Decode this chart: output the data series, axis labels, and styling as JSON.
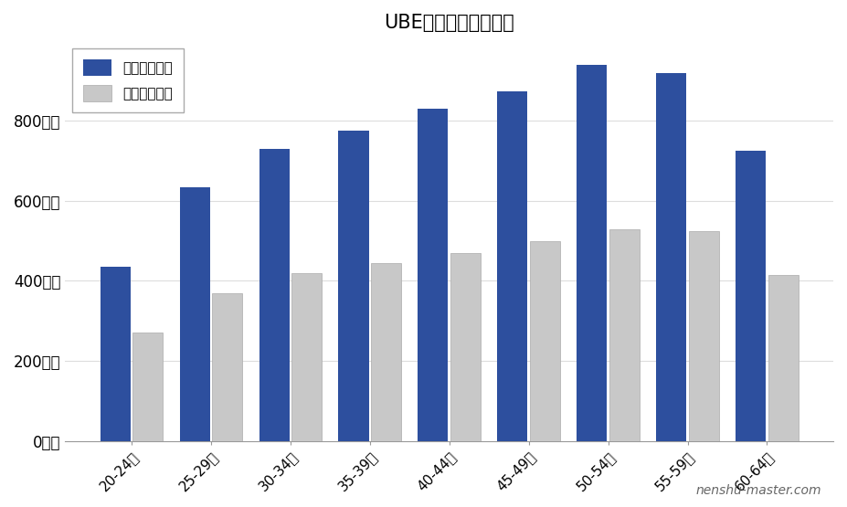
{
  "title": "UBEの年齢別平均年収",
  "categories": [
    "20-24歳",
    "25-29歳",
    "30-34歳",
    "35-39歳",
    "40-44歳",
    "45-49歳",
    "50-54歳",
    "55-59歳",
    "60-64歳"
  ],
  "ube_values": [
    435,
    635,
    730,
    775,
    830,
    875,
    940,
    920,
    725
  ],
  "national_values": [
    270,
    370,
    420,
    445,
    470,
    500,
    530,
    525,
    415
  ],
  "ube_color": "#2d4f9e",
  "national_color": "#c8c8c8",
  "ube_label": "想定平均年収",
  "national_label": "全国平均年収",
  "ylabel_ticks": [
    0,
    200,
    400,
    600,
    800
  ],
  "ylabel_tick_labels": [
    "0万円",
    "200万円",
    "400万円",
    "600万円",
    "800万円"
  ],
  "ylim": [
    0,
    1000
  ],
  "watermark": "nenshu-master.com",
  "background_color": "#ffffff",
  "grid_color": "#dddddd"
}
